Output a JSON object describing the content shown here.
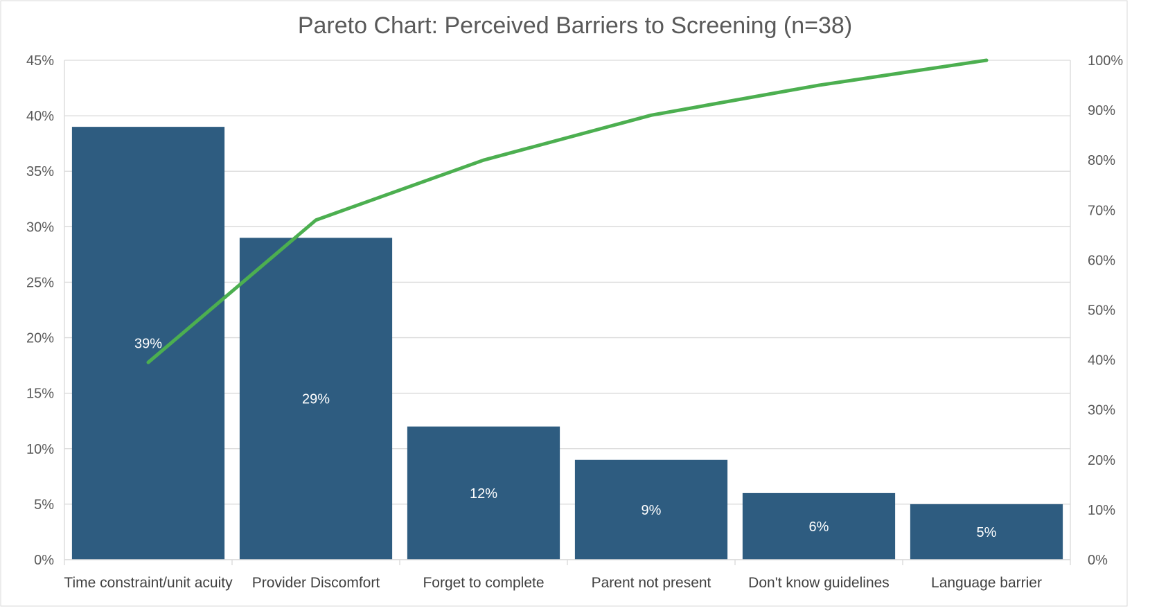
{
  "chart_data": {
    "type": "bar",
    "title": "Pareto Chart: Perceived Barriers to Screening (n=38)",
    "xlabel": "",
    "ylabel": "",
    "categories": [
      "Time constraint/unit acuity",
      "Provider Discomfort",
      "Forget to complete",
      "Parent not present",
      "Don't know guidelines",
      "Language barrier"
    ],
    "series": [
      {
        "type": "bar",
        "axis": "left",
        "values": [
          39,
          29,
          12,
          9,
          6,
          5
        ],
        "data_labels": [
          "39%",
          "29%",
          "12%",
          "9%",
          "6%",
          "5%"
        ],
        "color": "#2E5C80"
      },
      {
        "type": "line",
        "axis": "right",
        "values": [
          39.5,
          68,
          80,
          89,
          95,
          100
        ],
        "color": "#4CAF50"
      }
    ],
    "ylim": [
      0,
      45
    ],
    "y2lim": [
      0,
      100
    ],
    "left_ticks": [
      "0%",
      "5%",
      "10%",
      "15%",
      "20%",
      "25%",
      "30%",
      "35%",
      "40%",
      "45%"
    ],
    "right_ticks": [
      "0%",
      "10%",
      "20%",
      "30%",
      "40%",
      "50%",
      "60%",
      "70%",
      "80%",
      "90%",
      "100%"
    ],
    "grid": true,
    "legend": "none"
  }
}
